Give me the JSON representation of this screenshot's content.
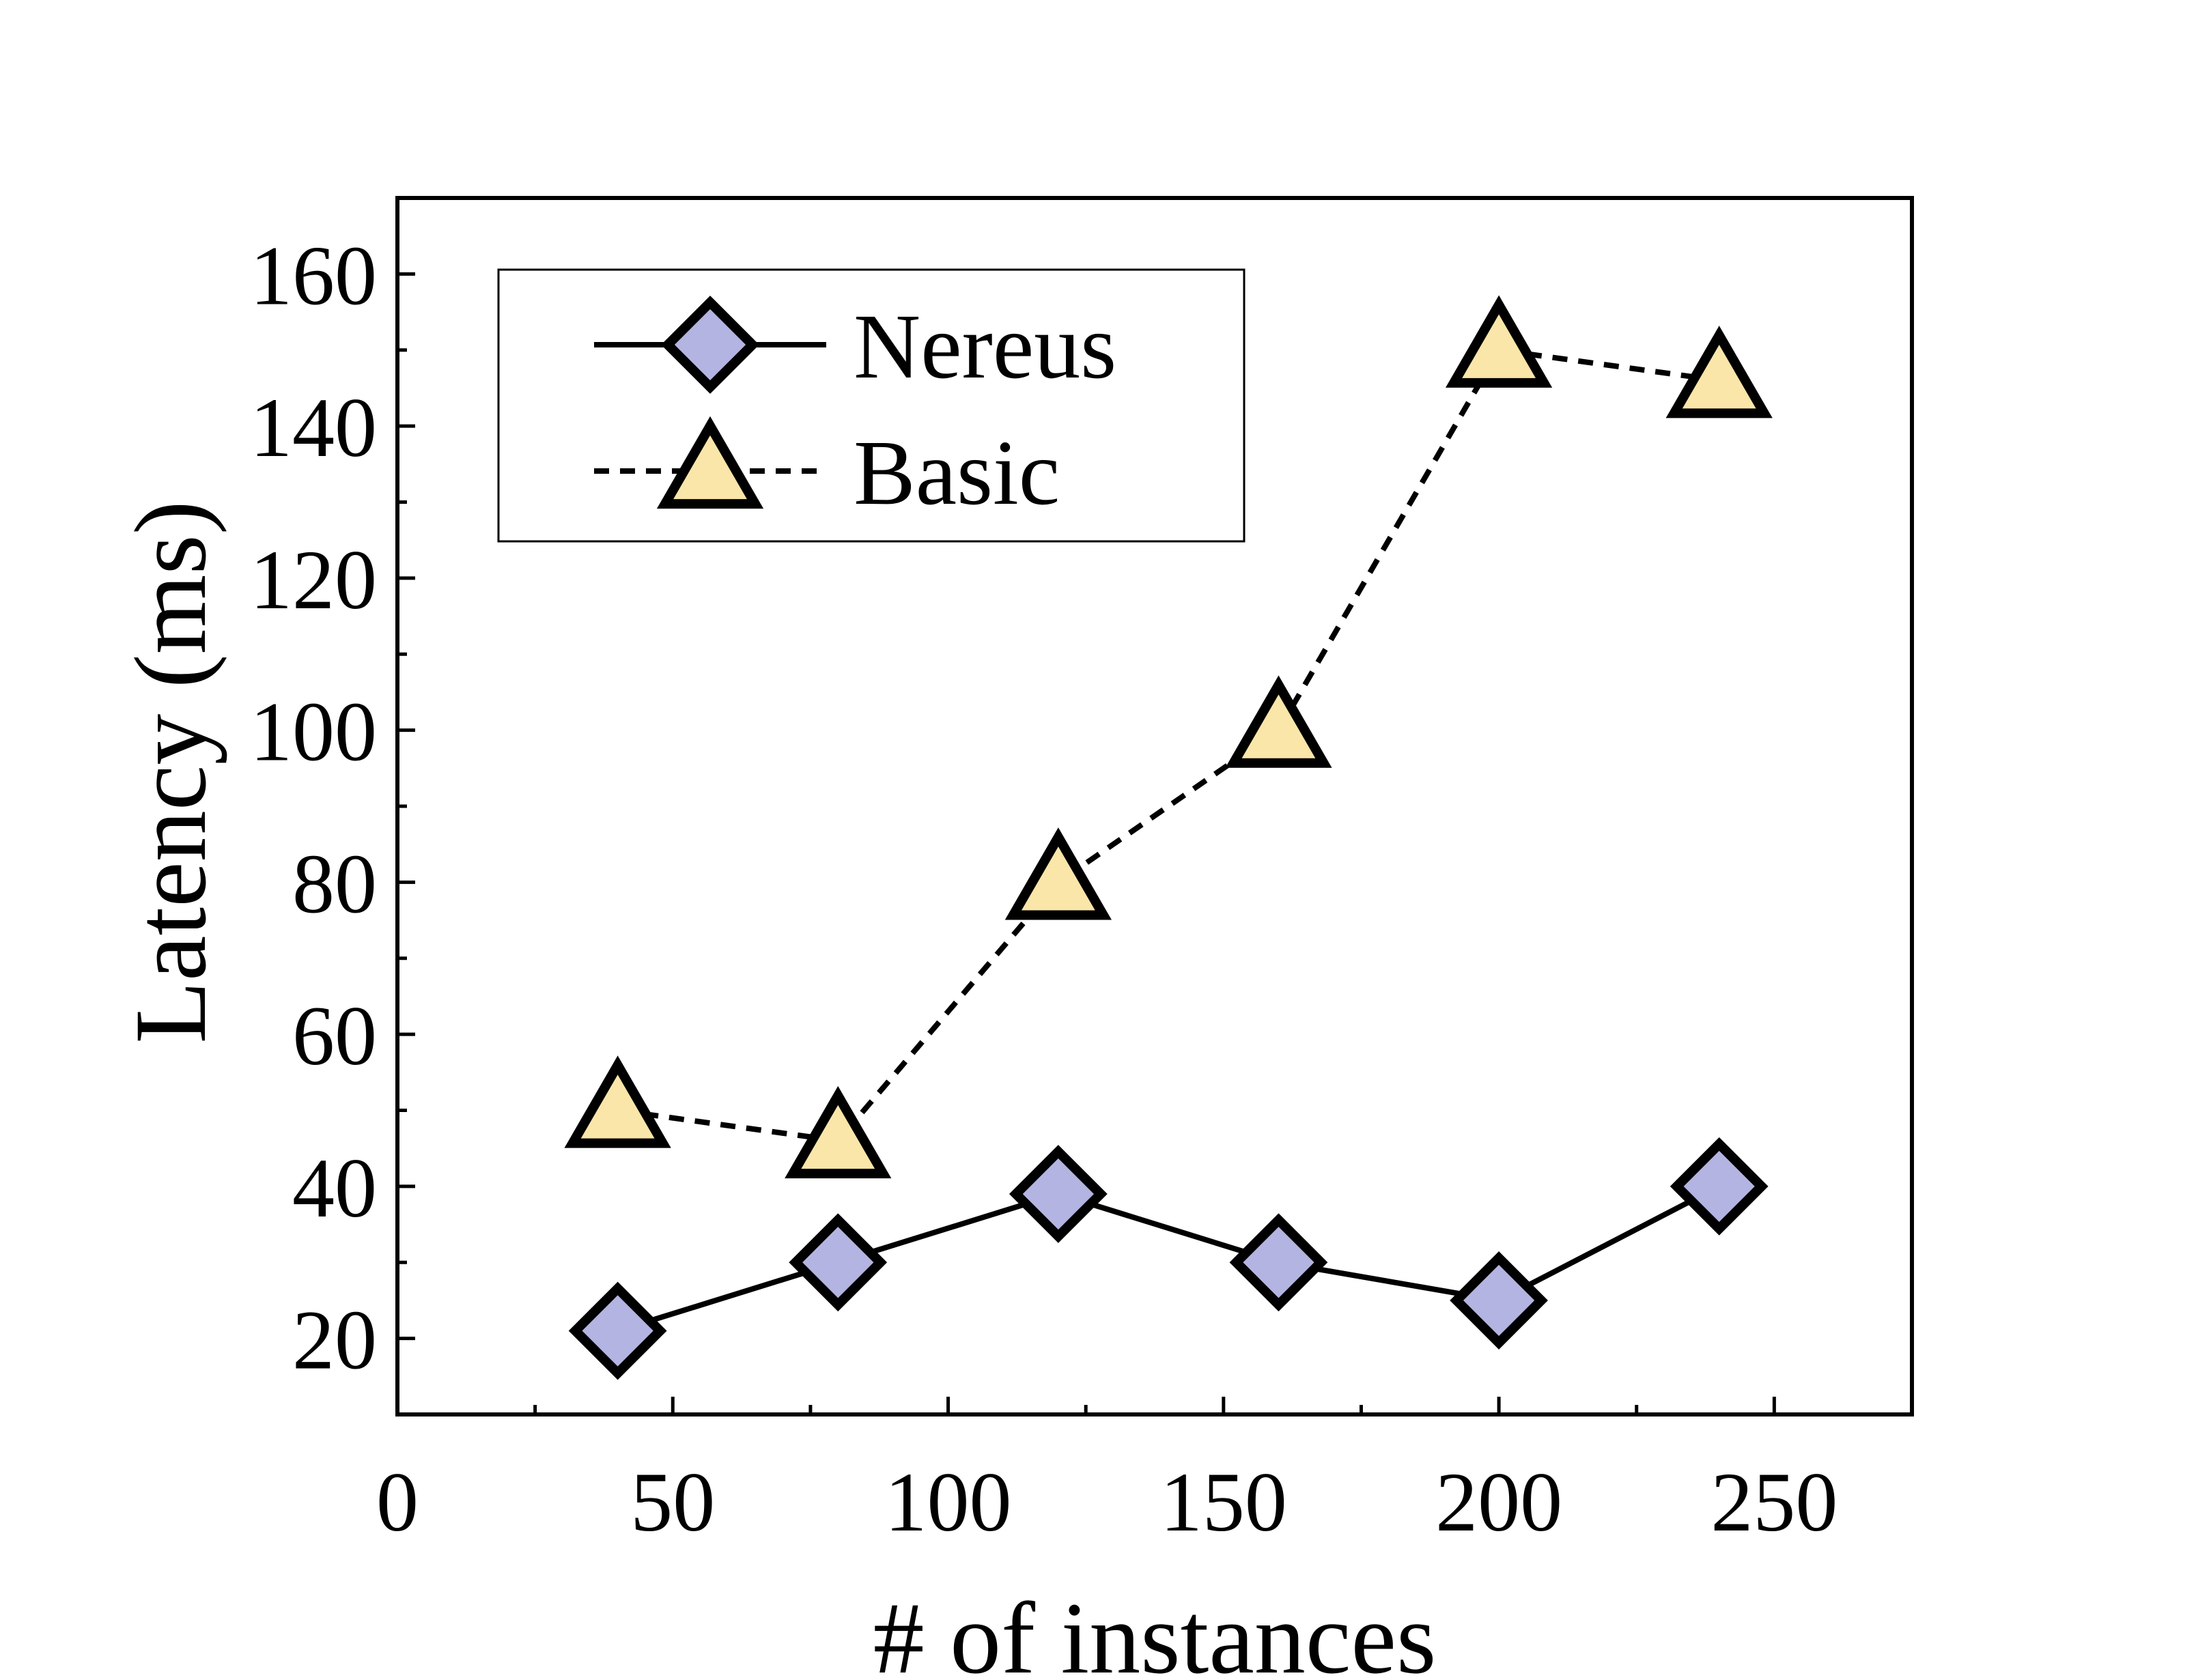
{
  "chart_data": {
    "type": "line",
    "xlabel": "# of instances",
    "ylabel": "Latency (ms)",
    "xlim": [
      0,
      275
    ],
    "ylim": [
      10,
      170
    ],
    "x_ticks": [
      0,
      50,
      100,
      150,
      200,
      250
    ],
    "y_ticks": [
      20,
      40,
      60,
      80,
      100,
      120,
      140,
      160
    ],
    "x_minor_ticks": [
      25,
      75,
      125,
      175,
      225
    ],
    "y_minor_ticks": [
      30,
      50,
      70,
      90,
      110,
      130,
      150
    ],
    "grid": false,
    "legend_position": "top-left",
    "series": [
      {
        "name": "Nereus",
        "marker": "diamond",
        "line": "solid",
        "color": "#b4b4e2",
        "x": [
          40,
          80,
          120,
          160,
          200,
          240
        ],
        "y": [
          21,
          30,
          39,
          30,
          25,
          40
        ]
      },
      {
        "name": "Basic",
        "marker": "triangle",
        "line": "dashed",
        "color": "#fae6a8",
        "x": [
          40,
          80,
          120,
          160,
          200,
          240
        ],
        "y": [
          50,
          46,
          80,
          100,
          150,
          146
        ]
      }
    ]
  }
}
